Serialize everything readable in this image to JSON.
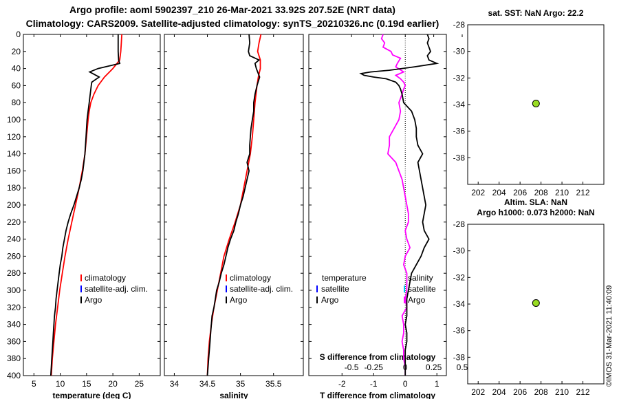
{
  "header": {
    "line1": "Argo profile: aoml 5902397_210 26-Mar-2021 33.92S 207.52E (NRT data)",
    "line2": "Climatology: CARS2009. Satellite-adjusted climatology: synTS_20210326.nc (0.19d earlier)"
  },
  "timestamp": "©IMOS 31-Mar-2021 11:40:09",
  "colors": {
    "climatology": "#ff0000",
    "satellite": "#0000ff",
    "argo": "#000000",
    "t_diff": "#ff00ff",
    "s_sat": "#00c8ff",
    "marker": "#99dd22"
  },
  "chart_data": [
    {
      "type": "line",
      "id": "temperature",
      "xlabel": "temperature (deg C)",
      "ylabel": "",
      "xlim": [
        3,
        29
      ],
      "ylim": [
        400,
        0
      ],
      "xticks": [
        5,
        10,
        15,
        20,
        25
      ],
      "yticks": [
        0,
        20,
        40,
        60,
        80,
        100,
        120,
        140,
        160,
        180,
        200,
        220,
        240,
        260,
        280,
        300,
        320,
        340,
        360,
        380,
        400
      ],
      "legend": [
        "climatology",
        "satellite-adj. clim.",
        "Argo"
      ],
      "series": [
        {
          "name": "climatology",
          "color": "#ff0000",
          "depth": [
            0,
            10,
            20,
            30,
            40,
            50,
            60,
            70,
            80,
            90,
            100,
            120,
            140,
            160,
            180,
            200,
            220,
            240,
            260,
            280,
            300,
            320,
            340,
            360,
            380,
            400
          ],
          "values": [
            21.7,
            21.6,
            21.5,
            21.3,
            20.0,
            18.4,
            17.2,
            16.4,
            15.8,
            15.5,
            15.3,
            15.0,
            14.7,
            14.2,
            13.6,
            12.9,
            12.2,
            11.5,
            10.9,
            10.4,
            9.9,
            9.5,
            9.1,
            8.8,
            8.5,
            8.3
          ]
        },
        {
          "name": "Argo",
          "color": "#000000",
          "depth": [
            0,
            10,
            20,
            30,
            34,
            40,
            44,
            50,
            56,
            60,
            70,
            80,
            90,
            100,
            110,
            120,
            130,
            140,
            150,
            160,
            170,
            180,
            190,
            200,
            210,
            220,
            230,
            240,
            250,
            260,
            270,
            280,
            290,
            300,
            310,
            320,
            330,
            340,
            350,
            360,
            370,
            380,
            390,
            400
          ],
          "values": [
            21.0,
            21.0,
            21.0,
            21.1,
            21.3,
            17.2,
            15.6,
            17.4,
            16.0,
            15.9,
            15.7,
            15.5,
            15.3,
            15.1,
            15.0,
            14.9,
            14.8,
            14.7,
            14.5,
            14.3,
            14.0,
            13.6,
            13.1,
            12.6,
            12.0,
            11.5,
            11.1,
            10.8,
            10.5,
            10.3,
            10.0,
            9.8,
            9.6,
            9.4,
            9.2,
            9.1,
            8.9,
            8.8,
            8.7,
            8.6,
            8.5,
            8.4,
            8.3,
            8.2
          ]
        }
      ]
    },
    {
      "type": "line",
      "id": "salinity",
      "xlabel": "salinity",
      "ylabel": "",
      "xlim": [
        33.85,
        35.95
      ],
      "ylim": [
        400,
        0
      ],
      "xticks": [
        34,
        34.5,
        35,
        35.5
      ],
      "legend": [
        "climatology",
        "satellite-adj. clim.",
        "Argo"
      ],
      "series": [
        {
          "name": "climatology",
          "color": "#ff0000",
          "depth": [
            0,
            10,
            20,
            30,
            40,
            50,
            60,
            80,
            100,
            120,
            140,
            160,
            180,
            200,
            220,
            240,
            260,
            280,
            300,
            320,
            340,
            360,
            380,
            400
          ],
          "values": [
            35.31,
            35.28,
            35.26,
            35.3,
            35.3,
            35.27,
            35.25,
            35.22,
            35.2,
            35.18,
            35.15,
            35.1,
            35.05,
            35.0,
            34.92,
            34.83,
            34.75,
            34.7,
            34.65,
            34.6,
            34.56,
            34.53,
            34.51,
            34.5
          ]
        },
        {
          "name": "Argo",
          "color": "#000000",
          "depth": [
            0,
            10,
            20,
            25,
            30,
            34,
            40,
            50,
            60,
            70,
            80,
            90,
            100,
            110,
            120,
            130,
            140,
            150,
            160,
            170,
            180,
            190,
            200,
            210,
            220,
            230,
            240,
            250,
            260,
            270,
            280,
            290,
            300,
            310,
            320,
            330,
            340,
            350,
            360,
            370,
            380,
            390,
            400
          ],
          "values": [
            35.13,
            35.14,
            35.12,
            35.14,
            35.28,
            35.22,
            35.24,
            35.29,
            35.25,
            35.22,
            35.2,
            35.2,
            35.18,
            35.16,
            35.15,
            35.14,
            35.14,
            35.1,
            35.13,
            35.1,
            35.07,
            35.04,
            35.0,
            34.97,
            34.93,
            34.9,
            34.85,
            34.81,
            34.78,
            34.75,
            34.71,
            34.68,
            34.64,
            34.62,
            34.6,
            34.57,
            34.56,
            34.55,
            34.54,
            34.53,
            34.52,
            34.51,
            34.5
          ]
        }
      ]
    },
    {
      "type": "line",
      "id": "difference",
      "xlabel": "T difference from climatology",
      "xlabel_top": "S difference from climatology",
      "xlim": [
        -3.05,
        1.3
      ],
      "ylim": [
        400,
        0
      ],
      "xticks_T": [
        -2,
        -1,
        0,
        1
      ],
      "xticks_S_labels": [
        "-0.5",
        "-0.25",
        "0",
        "0.25",
        "0.5"
      ],
      "xticks_S_pos": [
        -1.7,
        -1.0,
        0,
        0.9,
        1.8
      ],
      "legend": {
        "temperature_title": "temperature",
        "salinity_title": "salinity",
        "t_items": [
          "satellite",
          "Argo"
        ],
        "s_items": [
          "satellite",
          "Argo"
        ]
      },
      "series": [
        {
          "name": "S difference (Argo)",
          "color": "#ff00ff",
          "depth": [
            0,
            5,
            10,
            15,
            20,
            24,
            28,
            34,
            38,
            44,
            48,
            52,
            56,
            60,
            64,
            70,
            80,
            90,
            100,
            110,
            120,
            130,
            140,
            150,
            160,
            170,
            180,
            190,
            200,
            210,
            220,
            230,
            240,
            250,
            260,
            270,
            280,
            290,
            300,
            310,
            320,
            330,
            340,
            350,
            360,
            370,
            380,
            390,
            400
          ],
          "values": [
            -0.7,
            -0.75,
            -0.65,
            -0.7,
            -0.45,
            -0.4,
            -0.15,
            -0.25,
            -0.3,
            -0.05,
            -0.3,
            -0.15,
            -0.05,
            0.0,
            -0.05,
            -0.1,
            -0.2,
            -0.15,
            -0.2,
            -0.35,
            -0.5,
            -0.5,
            -0.55,
            -0.3,
            -0.2,
            -0.1,
            -0.05,
            0.0,
            0.05,
            0.1,
            0.1,
            0.0,
            0.05,
            0.15,
            0.0,
            -0.05,
            0.05,
            0.05,
            0.05,
            0.0,
            0.05,
            -0.1,
            -0.05,
            -0.05,
            -0.1,
            -0.05,
            -0.05,
            0.0,
            0.0
          ]
        },
        {
          "name": "T difference (Argo)",
          "color": "#000000",
          "depth": [
            0,
            5,
            10,
            20,
            25,
            30,
            34,
            38,
            42,
            44,
            46,
            48,
            50,
            52,
            56,
            60,
            64,
            70,
            80,
            90,
            100,
            110,
            120,
            130,
            140,
            150,
            160,
            170,
            180,
            190,
            200,
            210,
            220,
            230,
            240,
            250,
            260,
            270,
            280,
            290,
            300,
            310,
            320,
            330,
            340,
            350,
            360,
            370,
            380,
            390,
            400
          ],
          "values": [
            0.7,
            0.75,
            0.7,
            0.8,
            0.7,
            0.75,
            1.0,
            0.3,
            -0.5,
            -1.1,
            -1.4,
            -1.3,
            -1.0,
            -0.6,
            -0.3,
            -0.2,
            -0.15,
            -0.1,
            -0.05,
            0.2,
            0.3,
            0.35,
            0.35,
            0.4,
            0.55,
            0.4,
            0.45,
            0.5,
            0.55,
            0.6,
            0.65,
            0.6,
            0.55,
            0.6,
            0.75,
            0.6,
            0.5,
            0.35,
            0.2,
            0.15,
            0.1,
            0.05,
            0.05,
            0.05,
            0.0,
            0.05,
            0.05,
            0.0,
            0.0,
            0.0,
            0.0
          ]
        }
      ]
    },
    {
      "type": "scatter",
      "id": "sst",
      "title": "sat. SST: NaN Argo: 22.2",
      "xlim": [
        201,
        214
      ],
      "ylim": [
        -40,
        -28
      ],
      "xticks": [
        202,
        204,
        206,
        208,
        210,
        212
      ],
      "yticks": [
        -28,
        -30,
        -32,
        -34,
        -36,
        -38
      ],
      "points": [
        {
          "x": 207.52,
          "y": -33.92
        }
      ]
    },
    {
      "type": "scatter",
      "id": "sla",
      "title": "Altim. SLA: NaN",
      "title2": "Argo h1000: 0.073 h2000: NaN",
      "xlim": [
        201,
        214
      ],
      "ylim": [
        -40,
        -28
      ],
      "xticks": [
        202,
        204,
        206,
        208,
        210,
        212
      ],
      "yticks": [
        -28,
        -30,
        -32,
        -34,
        -36,
        -38
      ],
      "points": [
        {
          "x": 207.52,
          "y": -33.92
        }
      ]
    }
  ]
}
